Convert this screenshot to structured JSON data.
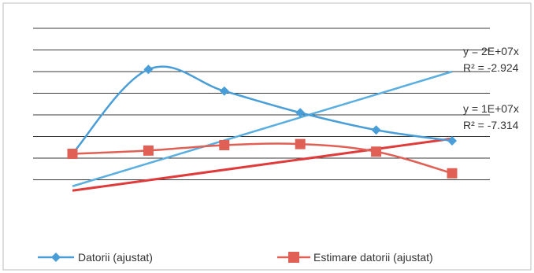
{
  "chart_data": {
    "type": "line",
    "x": [
      1,
      2,
      3,
      4,
      5,
      6
    ],
    "ylim": [
      0,
      8
    ],
    "grid": "horizontal",
    "legend_position": "bottom",
    "series": [
      {
        "name": "Datorii (ajustat)",
        "values": [
          2.2,
          6.1,
          5.1,
          4.1,
          3.3,
          2.8
        ],
        "color": "#4a9ed8",
        "marker": "diamond",
        "smooth": true
      },
      {
        "name": "Estimare datorii (ajustat)",
        "values": [
          2.2,
          2.35,
          2.6,
          2.65,
          2.3,
          1.3
        ],
        "color": "#e06055",
        "marker": "square",
        "smooth": true
      }
    ],
    "trendlines": [
      {
        "series_index": 0,
        "equation": "y = 2E+07x",
        "r_squared": "R² = -2.924",
        "start": 0.7,
        "end": 6.0,
        "color": "#5aaee0"
      },
      {
        "series_index": 1,
        "equation": "y = 1E+07x",
        "r_squared": "R² = -7.314",
        "start": 0.5,
        "end": 2.9,
        "color": "#e03b3b"
      }
    ]
  }
}
